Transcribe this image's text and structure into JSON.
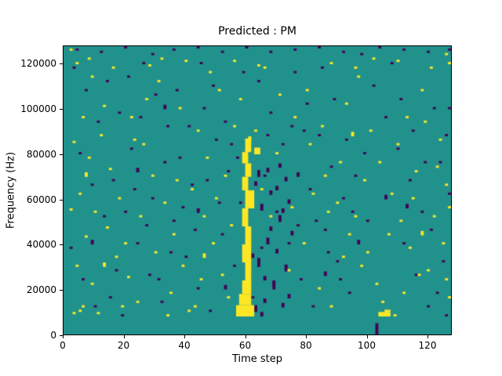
{
  "chart_data": {
    "type": "heatmap",
    "title": "Predicted : PM",
    "xlabel": "Time step",
    "ylabel": "Frequency (Hz)",
    "x_ticks": [
      0,
      20,
      40,
      60,
      80,
      100,
      120
    ],
    "y_ticks": [
      0,
      20000,
      40000,
      60000,
      80000,
      100000,
      120000
    ],
    "x_max": 128,
    "y_bins": 128,
    "y_max_hz": 128000,
    "hz_per_bin": 1000,
    "grid": false,
    "legend": "none",
    "colors": {
      "background": "#21918c",
      "high": "#fde725",
      "low": "#440154",
      "figure": "#ffffff",
      "axis": "#000000"
    },
    "cells_high": [
      [
        57,
        8,
        6,
        5
      ],
      [
        58,
        13,
        4,
        5
      ],
      [
        59,
        18,
        3,
        6
      ],
      [
        60,
        24,
        2,
        8
      ],
      [
        59,
        32,
        3,
        8
      ],
      [
        60,
        40,
        2,
        8
      ],
      [
        59,
        48,
        2,
        8
      ],
      [
        60,
        56,
        3,
        8
      ],
      [
        59,
        64,
        2,
        6
      ],
      [
        60,
        70,
        2,
        6
      ],
      [
        59,
        76,
        2,
        5
      ],
      [
        60,
        81,
        2,
        6
      ],
      [
        63,
        80,
        2,
        3
      ],
      [
        61,
        86,
        1,
        2
      ],
      [
        104,
        8,
        4,
        2
      ],
      [
        106,
        10,
        2,
        1
      ],
      [
        4,
        120
      ],
      [
        9,
        114
      ],
      [
        13,
        101
      ],
      [
        6,
        96
      ],
      [
        3,
        85
      ],
      [
        8,
        78
      ],
      [
        5,
        62
      ],
      [
        2,
        55
      ],
      [
        7,
        43
      ],
      [
        4,
        30
      ],
      [
        9,
        22
      ],
      [
        6,
        12
      ],
      [
        12,
        88
      ],
      [
        15,
        73
      ],
      [
        18,
        60
      ],
      [
        14,
        47
      ],
      [
        17,
        34
      ],
      [
        21,
        25
      ],
      [
        24,
        14
      ],
      [
        11,
        9
      ],
      [
        22,
        96
      ],
      [
        27,
        104
      ],
      [
        31,
        112
      ],
      [
        26,
        84
      ],
      [
        29,
        70
      ],
      [
        33,
        58
      ],
      [
        36,
        44
      ],
      [
        39,
        30
      ],
      [
        35,
        18
      ],
      [
        41,
        10
      ],
      [
        44,
        90
      ],
      [
        47,
        78
      ],
      [
        42,
        64
      ],
      [
        46,
        52
      ],
      [
        49,
        40
      ],
      [
        52,
        26
      ],
      [
        54,
        16
      ],
      [
        38,
        100
      ],
      [
        51,
        108
      ],
      [
        56,
        92
      ],
      [
        66,
        118
      ],
      [
        71,
        106
      ],
      [
        76,
        96
      ],
      [
        81,
        84
      ],
      [
        86,
        70
      ],
      [
        90,
        58
      ],
      [
        94,
        44
      ],
      [
        98,
        30
      ],
      [
        84,
        20
      ],
      [
        88,
        12
      ],
      [
        93,
        102
      ],
      [
        97,
        114
      ],
      [
        101,
        90
      ],
      [
        104,
        76
      ],
      [
        108,
        62
      ],
      [
        111,
        50
      ],
      [
        114,
        38
      ],
      [
        117,
        26
      ],
      [
        105,
        14
      ],
      [
        109,
        8
      ],
      [
        113,
        96
      ],
      [
        118,
        108
      ],
      [
        121,
        118
      ],
      [
        124,
        86
      ],
      [
        126,
        66
      ],
      [
        122,
        52
      ],
      [
        125,
        40
      ],
      [
        120,
        28
      ],
      [
        127,
        16
      ],
      [
        116,
        72
      ],
      [
        99,
        68
      ],
      [
        79,
        40
      ],
      [
        74,
        28
      ],
      [
        68,
        52
      ],
      [
        63,
        90
      ],
      [
        58,
        104
      ],
      [
        48,
        116
      ],
      [
        32,
        122
      ],
      [
        16,
        118
      ],
      [
        10,
        54
      ],
      [
        20,
        40
      ],
      [
        25,
        52
      ],
      [
        30,
        36
      ],
      [
        45,
        24
      ],
      [
        50,
        60
      ],
      [
        55,
        48
      ],
      [
        65,
        64
      ],
      [
        70,
        80
      ],
      [
        75,
        56
      ],
      [
        80,
        108
      ],
      [
        85,
        92
      ],
      [
        91,
        76
      ],
      [
        96,
        52
      ],
      [
        100,
        36
      ],
      [
        103,
        22
      ],
      [
        107,
        44
      ],
      [
        110,
        84
      ],
      [
        115,
        60
      ],
      [
        119,
        94
      ],
      [
        123,
        74
      ],
      [
        2,
        126
      ],
      [
        8,
        122
      ],
      [
        28,
        119
      ],
      [
        56,
        121
      ],
      [
        64,
        119
      ],
      [
        88,
        120
      ],
      [
        96,
        118
      ],
      [
        102,
        122
      ],
      [
        110,
        121
      ],
      [
        126,
        124
      ],
      [
        127,
        120
      ],
      [
        126,
        24
      ],
      [
        127,
        56
      ],
      [
        40,
        121
      ],
      [
        5,
        10
      ],
      [
        3,
        9
      ],
      [
        34,
        8
      ],
      [
        43,
        12
      ],
      [
        19,
        12
      ],
      [
        23,
        86
      ],
      [
        37,
        68
      ],
      [
        53,
        70
      ],
      [
        82,
        62
      ],
      [
        87,
        54
      ],
      [
        92,
        34
      ],
      [
        112,
        18
      ],
      [
        7,
        70,
        1,
        2
      ],
      [
        13,
        30,
        1,
        2
      ],
      [
        46,
        34,
        1,
        2
      ],
      [
        95,
        88,
        1,
        2
      ],
      [
        118,
        44,
        1,
        2
      ]
    ],
    "cells_low": [
      [
        4,
        126
      ],
      [
        12,
        125
      ],
      [
        20,
        127
      ],
      [
        36,
        126
      ],
      [
        44,
        127
      ],
      [
        52,
        125
      ],
      [
        60,
        127
      ],
      [
        68,
        125
      ],
      [
        76,
        126
      ],
      [
        92,
        125
      ],
      [
        104,
        127
      ],
      [
        112,
        126
      ],
      [
        120,
        125
      ],
      [
        127,
        126
      ],
      [
        84,
        127
      ],
      [
        29,
        124
      ],
      [
        63,
        10,
        1,
        3
      ],
      [
        64,
        30,
        1,
        4
      ],
      [
        65,
        55,
        1,
        3
      ],
      [
        66,
        14,
        1,
        2
      ],
      [
        67,
        40,
        1,
        3
      ],
      [
        68,
        62,
        1,
        2
      ],
      [
        69,
        20,
        1,
        4
      ],
      [
        70,
        36,
        1,
        2
      ],
      [
        71,
        50,
        1,
        3
      ],
      [
        72,
        12,
        1,
        2
      ],
      [
        73,
        28,
        1,
        3
      ],
      [
        74,
        58,
        1,
        2
      ],
      [
        75,
        44,
        1,
        2
      ],
      [
        64,
        70,
        1,
        3
      ],
      [
        62,
        34,
        1,
        2
      ],
      [
        66,
        24,
        1,
        2
      ],
      [
        68,
        46,
        1,
        2
      ],
      [
        70,
        64,
        1,
        2
      ],
      [
        72,
        54,
        1,
        2
      ],
      [
        74,
        16,
        1,
        2
      ],
      [
        63,
        66,
        1,
        2
      ],
      [
        65,
        8,
        1,
        2
      ],
      [
        67,
        72,
        1,
        2
      ],
      [
        71,
        74,
        1,
        2
      ],
      [
        73,
        68,
        1,
        2
      ],
      [
        3,
        118
      ],
      [
        7,
        108
      ],
      [
        11,
        94
      ],
      [
        5,
        80
      ],
      [
        9,
        66
      ],
      [
        13,
        52
      ],
      [
        2,
        38
      ],
      [
        6,
        24
      ],
      [
        10,
        12
      ],
      [
        14,
        112
      ],
      [
        18,
        98
      ],
      [
        22,
        82
      ],
      [
        16,
        68
      ],
      [
        20,
        54
      ],
      [
        24,
        40
      ],
      [
        28,
        26
      ],
      [
        32,
        14
      ],
      [
        26,
        120
      ],
      [
        30,
        106
      ],
      [
        34,
        92
      ],
      [
        38,
        78
      ],
      [
        42,
        66
      ],
      [
        36,
        50
      ],
      [
        40,
        34
      ],
      [
        44,
        20
      ],
      [
        48,
        10
      ],
      [
        46,
        100
      ],
      [
        50,
        86
      ],
      [
        54,
        72
      ],
      [
        58,
        58
      ],
      [
        52,
        44
      ],
      [
        56,
        30
      ],
      [
        62,
        16
      ],
      [
        64,
        112
      ],
      [
        68,
        98
      ],
      [
        72,
        84
      ],
      [
        66,
        70
      ],
      [
        70,
        54
      ],
      [
        74,
        40
      ],
      [
        78,
        24
      ],
      [
        82,
        12
      ],
      [
        76,
        116
      ],
      [
        80,
        102
      ],
      [
        84,
        88
      ],
      [
        88,
        74
      ],
      [
        92,
        60
      ],
      [
        86,
        46
      ],
      [
        90,
        32
      ],
      [
        94,
        18
      ],
      [
        98,
        124
      ],
      [
        102,
        110
      ],
      [
        106,
        96
      ],
      [
        110,
        82
      ],
      [
        114,
        68
      ],
      [
        118,
        54
      ],
      [
        112,
        40
      ],
      [
        116,
        26
      ],
      [
        120,
        12
      ],
      [
        122,
        100
      ],
      [
        126,
        88
      ],
      [
        124,
        76
      ],
      [
        127,
        62
      ],
      [
        121,
        46
      ],
      [
        125,
        32
      ],
      [
        123,
        18
      ],
      [
        100,
        50
      ],
      [
        96,
        70
      ],
      [
        93,
        86
      ],
      [
        89,
        104
      ],
      [
        85,
        118
      ],
      [
        81,
        64
      ],
      [
        77,
        48
      ],
      [
        73,
        30
      ],
      [
        69,
        22
      ],
      [
        65,
        38
      ],
      [
        61,
        26
      ],
      [
        57,
        78
      ],
      [
        53,
        94
      ],
      [
        49,
        110
      ],
      [
        45,
        120
      ],
      [
        41,
        92
      ],
      [
        37,
        108
      ],
      [
        33,
        76
      ],
      [
        29,
        60
      ],
      [
        25,
        96
      ],
      [
        21,
        114
      ],
      [
        17,
        28
      ],
      [
        15,
        16
      ],
      [
        19,
        8
      ],
      [
        23,
        64
      ],
      [
        27,
        48
      ],
      [
        31,
        24
      ],
      [
        35,
        36
      ],
      [
        39,
        56
      ],
      [
        43,
        46
      ],
      [
        47,
        68
      ],
      [
        51,
        58
      ],
      [
        55,
        84
      ],
      [
        59,
        116
      ],
      [
        67,
        88
      ],
      [
        75,
        92
      ],
      [
        79,
        90
      ],
      [
        83,
        50
      ],
      [
        87,
        36
      ],
      [
        91,
        24
      ],
      [
        95,
        54
      ],
      [
        99,
        80
      ],
      [
        103,
        0,
        1,
        5
      ],
      [
        108,
        120
      ],
      [
        111,
        104
      ],
      [
        115,
        90
      ],
      [
        119,
        76
      ],
      [
        127,
        100
      ],
      [
        126,
        8
      ],
      [
        9,
        40,
        1,
        2
      ],
      [
        33,
        100,
        1,
        2
      ],
      [
        53,
        20,
        1,
        2
      ],
      [
        77,
        70,
        1,
        2
      ],
      [
        97,
        40,
        1,
        2
      ],
      [
        113,
        56,
        1,
        2
      ],
      [
        24,
        72,
        1,
        2
      ],
      [
        44,
        54,
        1,
        2
      ],
      [
        86,
        26,
        1,
        2
      ],
      [
        106,
        60,
        1,
        2
      ]
    ]
  }
}
